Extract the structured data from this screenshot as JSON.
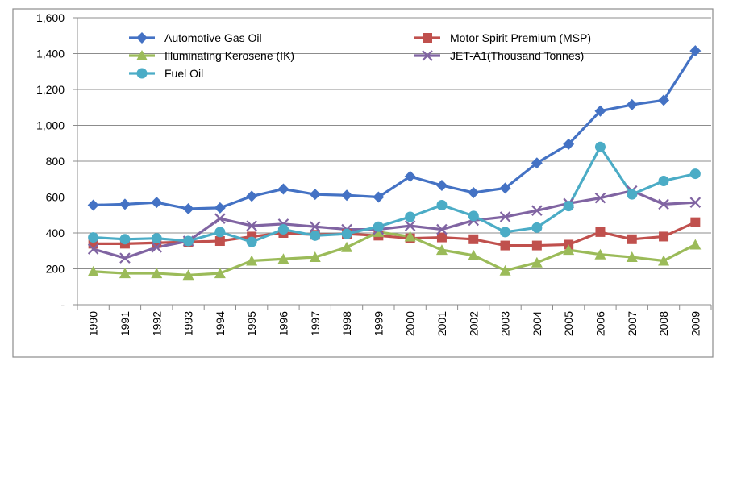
{
  "chart_data": {
    "type": "line",
    "title": "",
    "xlabel": "",
    "ylabel": "",
    "ylim": [
      0,
      1600
    ],
    "y_ticks": [
      {
        "value": 0,
        "label": "-"
      },
      {
        "value": 200,
        "label": "200"
      },
      {
        "value": 400,
        "label": "400"
      },
      {
        "value": 600,
        "label": "600"
      },
      {
        "value": 800,
        "label": "800"
      },
      {
        "value": 1000,
        "label": "1,000"
      },
      {
        "value": 1200,
        "label": "1,200"
      },
      {
        "value": 1400,
        "label": "1,400"
      },
      {
        "value": 1600,
        "label": "1,600"
      }
    ],
    "grid": true,
    "legend_position": "top",
    "categories": [
      "1990",
      "1991",
      "1992",
      "1993",
      "1994",
      "1995",
      "1996",
      "1997",
      "1998",
      "1999",
      "2000",
      "2001",
      "2002",
      "2003",
      "2004",
      "2005",
      "2006",
      "2007",
      "2008",
      "2009"
    ],
    "series": [
      {
        "name": "Automotive Gas Oil",
        "color": "#4472c4",
        "marker": "diamond",
        "values": [
          555,
          560,
          570,
          535,
          540,
          605,
          645,
          615,
          610,
          600,
          715,
          665,
          625,
          650,
          790,
          895,
          1080,
          1115,
          1140,
          1415
        ]
      },
      {
        "name": "Motor Spirit Premium (MSP)",
        "color": "#c0504d",
        "marker": "square",
        "values": [
          340,
          340,
          345,
          350,
          355,
          380,
          400,
          390,
          395,
          385,
          370,
          375,
          365,
          330,
          330,
          335,
          405,
          365,
          380,
          460
        ]
      },
      {
        "name": "Illuminating Kerosene (IK)",
        "color": "#9bbb59",
        "marker": "triangle",
        "values": [
          185,
          175,
          175,
          165,
          175,
          245,
          255,
          265,
          320,
          405,
          380,
          305,
          275,
          190,
          235,
          305,
          280,
          265,
          245,
          335
        ]
      },
      {
        "name": "JET-A1(Thousand Tonnes)",
        "color": "#8064a2",
        "marker": "x",
        "values": [
          310,
          260,
          320,
          355,
          480,
          440,
          450,
          435,
          420,
          420,
          440,
          420,
          470,
          490,
          525,
          565,
          595,
          635,
          560,
          570
        ]
      },
      {
        "name": "Fuel Oil",
        "color": "#4bacc6",
        "marker": "circle",
        "values": [
          375,
          365,
          370,
          355,
          405,
          350,
          420,
          385,
          395,
          435,
          490,
          555,
          495,
          405,
          430,
          550,
          880,
          615,
          690,
          730
        ]
      }
    ]
  }
}
